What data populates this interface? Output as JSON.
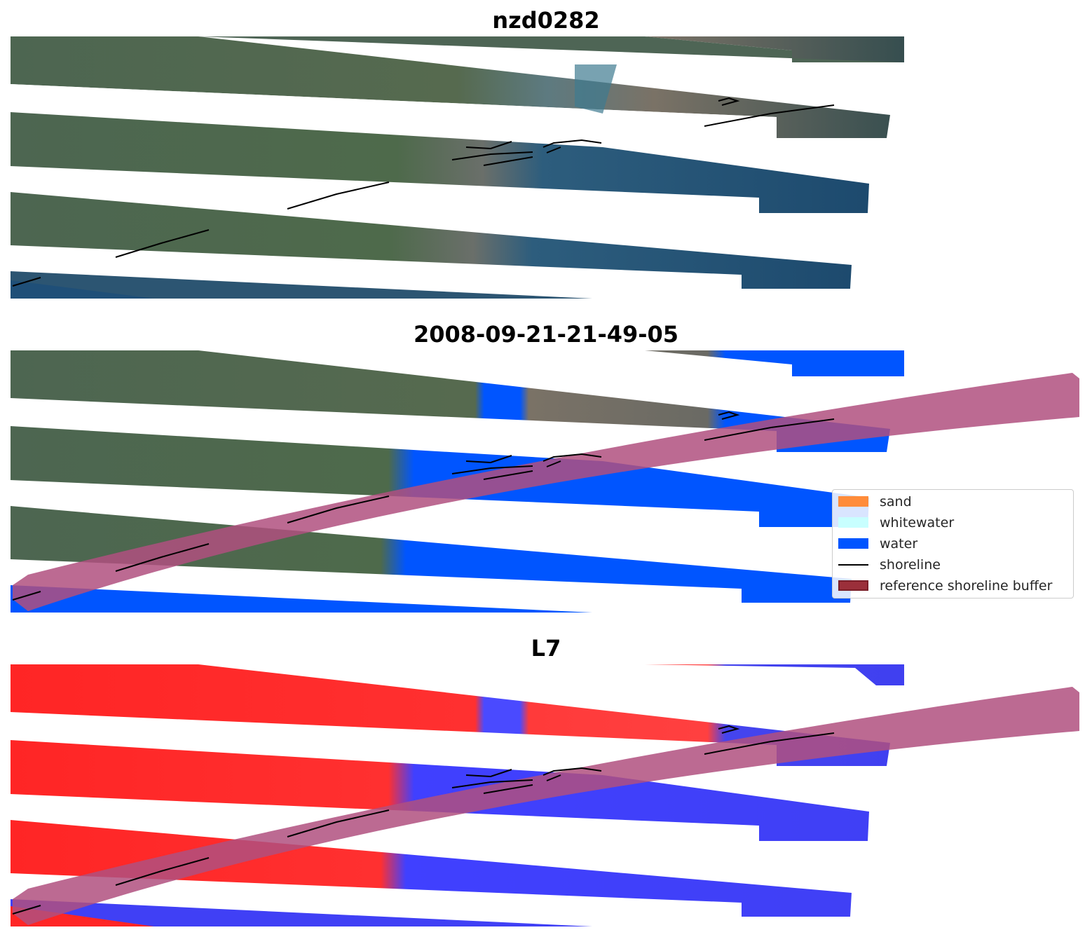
{
  "titles": {
    "top": "nzd0282",
    "middle": "2008-09-21-21-49-05",
    "bottom": "L7"
  },
  "legend": {
    "items": [
      {
        "label": "sand",
        "color": "#ff8c3a",
        "kind": "patch"
      },
      {
        "label": "whitewater",
        "color": "#c8ffff",
        "kind": "patch"
      },
      {
        "label": "water",
        "color": "#0055ff",
        "kind": "patch"
      },
      {
        "label": "shoreline",
        "color": "#000000",
        "kind": "line"
      },
      {
        "label": "reference shoreline buffer",
        "color": "#9b2f3a",
        "kind": "patch"
      }
    ]
  },
  "colors": {
    "land": "#4f6a4d",
    "land_dark": "#3d5340",
    "sea": "#1f4f78",
    "sea_dark": "#1a4468",
    "water_class": "#0055ff",
    "index_positive": "#ff2020",
    "index_negative": "#3a3aff",
    "buffer": "#b0507f",
    "shoreline": "#000000"
  }
}
